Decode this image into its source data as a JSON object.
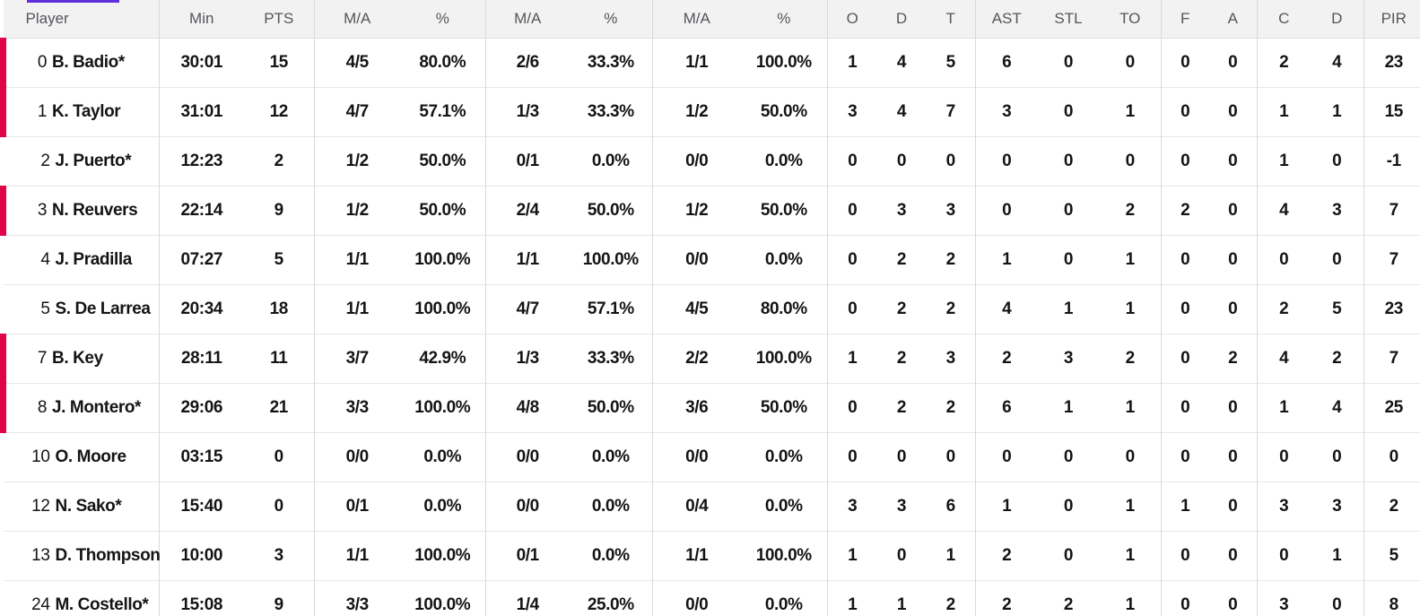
{
  "page": {
    "tab_indicator_color": "#6030dd"
  },
  "colors": {
    "on_court_marker": "#e00549",
    "header_bg": "#f2f2f2",
    "header_text": "#54565b",
    "body_text": "#141414",
    "grid_line": "#d9d9d9",
    "row_line": "#e6e6e6"
  },
  "table": {
    "header": [
      "Player",
      "Min",
      "PTS",
      "M/A",
      "%",
      "M/A",
      "%",
      "M/A",
      "%",
      "O",
      "D",
      "T",
      "AST",
      "STL",
      "TO",
      "F",
      "A",
      "C",
      "D",
      "PIR"
    ],
    "rows": [
      {
        "number": "0",
        "name": "B. Badio*",
        "on_court": true,
        "stats": [
          "30:01",
          "15",
          "4/5",
          "80.0%",
          "2/6",
          "33.3%",
          "1/1",
          "100.0%",
          "1",
          "4",
          "5",
          "6",
          "0",
          "0",
          "0",
          "0",
          "2",
          "4",
          "23"
        ]
      },
      {
        "number": "1",
        "name": "K. Taylor",
        "on_court": true,
        "stats": [
          "31:01",
          "12",
          "4/7",
          "57.1%",
          "1/3",
          "33.3%",
          "1/2",
          "50.0%",
          "3",
          "4",
          "7",
          "3",
          "0",
          "1",
          "0",
          "0",
          "1",
          "1",
          "15"
        ]
      },
      {
        "number": "2",
        "name": "J. Puerto*",
        "on_court": false,
        "stats": [
          "12:23",
          "2",
          "1/2",
          "50.0%",
          "0/1",
          "0.0%",
          "0/0",
          "0.0%",
          "0",
          "0",
          "0",
          "0",
          "0",
          "0",
          "0",
          "0",
          "1",
          "0",
          "-1"
        ]
      },
      {
        "number": "3",
        "name": "N. Reuvers",
        "on_court": true,
        "stats": [
          "22:14",
          "9",
          "1/2",
          "50.0%",
          "2/4",
          "50.0%",
          "1/2",
          "50.0%",
          "0",
          "3",
          "3",
          "0",
          "0",
          "2",
          "2",
          "0",
          "4",
          "3",
          "7"
        ]
      },
      {
        "number": "4",
        "name": "J. Pradilla",
        "on_court": false,
        "stats": [
          "07:27",
          "5",
          "1/1",
          "100.0%",
          "1/1",
          "100.0%",
          "0/0",
          "0.0%",
          "0",
          "2",
          "2",
          "1",
          "0",
          "1",
          "0",
          "0",
          "0",
          "0",
          "7"
        ]
      },
      {
        "number": "5",
        "name": "S. De Larrea",
        "on_court": false,
        "stats": [
          "20:34",
          "18",
          "1/1",
          "100.0%",
          "4/7",
          "57.1%",
          "4/5",
          "80.0%",
          "0",
          "2",
          "2",
          "4",
          "1",
          "1",
          "0",
          "0",
          "2",
          "5",
          "23"
        ]
      },
      {
        "number": "7",
        "name": "B. Key",
        "on_court": true,
        "stats": [
          "28:11",
          "11",
          "3/7",
          "42.9%",
          "1/3",
          "33.3%",
          "2/2",
          "100.0%",
          "1",
          "2",
          "3",
          "2",
          "3",
          "2",
          "0",
          "2",
          "4",
          "2",
          "7"
        ]
      },
      {
        "number": "8",
        "name": "J. Montero*",
        "on_court": true,
        "stats": [
          "29:06",
          "21",
          "3/3",
          "100.0%",
          "4/8",
          "50.0%",
          "3/6",
          "50.0%",
          "0",
          "2",
          "2",
          "6",
          "1",
          "1",
          "0",
          "0",
          "1",
          "4",
          "25"
        ]
      },
      {
        "number": "10",
        "name": "O. Moore",
        "on_court": false,
        "stats": [
          "03:15",
          "0",
          "0/0",
          "0.0%",
          "0/0",
          "0.0%",
          "0/0",
          "0.0%",
          "0",
          "0",
          "0",
          "0",
          "0",
          "0",
          "0",
          "0",
          "0",
          "0",
          "0"
        ]
      },
      {
        "number": "12",
        "name": "N. Sako*",
        "on_court": false,
        "stats": [
          "15:40",
          "0",
          "0/1",
          "0.0%",
          "0/0",
          "0.0%",
          "0/4",
          "0.0%",
          "3",
          "3",
          "6",
          "1",
          "0",
          "1",
          "1",
          "0",
          "3",
          "3",
          "2"
        ]
      },
      {
        "number": "13",
        "name": "D. Thompson",
        "on_court": false,
        "stats": [
          "10:00",
          "3",
          "1/1",
          "100.0%",
          "0/1",
          "0.0%",
          "1/1",
          "100.0%",
          "1",
          "0",
          "1",
          "2",
          "0",
          "1",
          "0",
          "0",
          "0",
          "1",
          "5"
        ]
      },
      {
        "number": "24",
        "name": "M. Costello*",
        "on_court": false,
        "stats": [
          "15:08",
          "9",
          "3/3",
          "100.0%",
          "1/4",
          "25.0%",
          "0/0",
          "0.0%",
          "1",
          "1",
          "2",
          "2",
          "2",
          "1",
          "0",
          "0",
          "3",
          "0",
          "8"
        ]
      }
    ]
  }
}
